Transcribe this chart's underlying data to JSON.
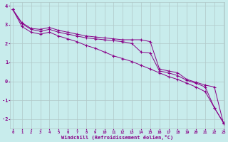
{
  "xlabel": "Windchill (Refroidissement éolien,°C)",
  "background_color": "#c8ecec",
  "grid_color": "#b0c8c8",
  "line_color": "#880088",
  "x_min": 0,
  "x_max": 23,
  "y_min": -2.5,
  "y_max": 4.2,
  "y_ticks": [
    -2,
    -1,
    0,
    1,
    2,
    3,
    4
  ],
  "series1_x": [
    0,
    1,
    2,
    3,
    4,
    5,
    6,
    7,
    8,
    9,
    10,
    11,
    12,
    13,
    14,
    15,
    16,
    17,
    18,
    19,
    20,
    21,
    22,
    23
  ],
  "series1_y": [
    3.8,
    3.1,
    2.8,
    2.75,
    2.85,
    2.7,
    2.6,
    2.5,
    2.4,
    2.35,
    2.3,
    2.25,
    2.2,
    2.2,
    2.2,
    2.1,
    0.65,
    0.55,
    0.45,
    0.1,
    -0.05,
    -0.2,
    -0.3,
    -2.25
  ],
  "series2_x": [
    0,
    1,
    2,
    3,
    4,
    5,
    6,
    7,
    8,
    9,
    10,
    11,
    12,
    13,
    14,
    15,
    16,
    17,
    18,
    19,
    20,
    21,
    22,
    23
  ],
  "series2_y": [
    3.8,
    3.05,
    2.75,
    2.65,
    2.75,
    2.6,
    2.5,
    2.4,
    2.3,
    2.25,
    2.2,
    2.15,
    2.1,
    2.0,
    1.55,
    1.5,
    0.55,
    0.45,
    0.3,
    0.05,
    -0.1,
    -0.3,
    -1.4,
    -2.2
  ],
  "series3_x": [
    0,
    1,
    2,
    3,
    4,
    5,
    6,
    7,
    8,
    9,
    10,
    11,
    12,
    13,
    14,
    15,
    16,
    17,
    18,
    19,
    20,
    21,
    22,
    23
  ],
  "series3_y": [
    3.8,
    2.9,
    2.6,
    2.5,
    2.6,
    2.4,
    2.25,
    2.1,
    1.9,
    1.75,
    1.55,
    1.35,
    1.2,
    1.05,
    0.85,
    0.65,
    0.45,
    0.25,
    0.1,
    -0.1,
    -0.3,
    -0.55,
    -1.4,
    -2.2
  ]
}
